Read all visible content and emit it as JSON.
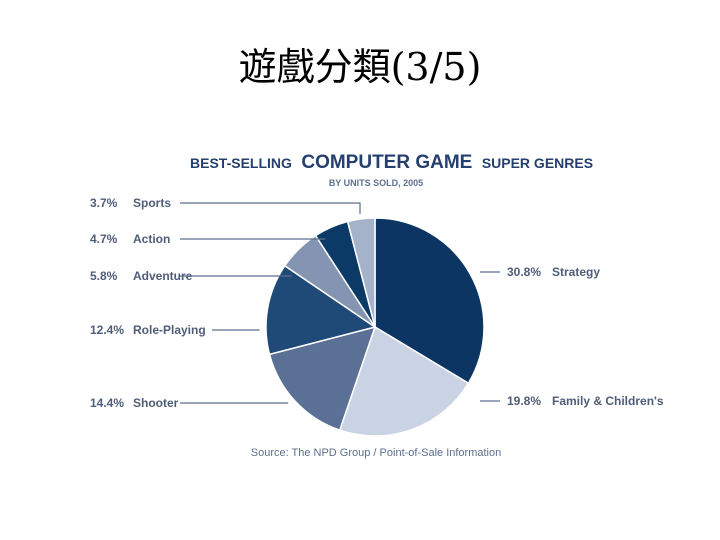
{
  "slide": {
    "title": "遊戲分類(3/5)"
  },
  "chart_data": {
    "type": "pie",
    "title_prefix": "BEST-SELLING",
    "title_main": "COMPUTER GAME",
    "title_suffix": "SUPER GENRES",
    "subtitle": "BY UNITS SOLD, 2005",
    "source": "Source: The NPD Group / Point-of-Sale Information",
    "slices": [
      {
        "name": "Strategy",
        "value": 30.8,
        "label": "30.8%",
        "color": "#0d3564",
        "side": "right"
      },
      {
        "name": "Family & Children's",
        "value": 19.8,
        "label": "19.8%",
        "color": "#c9d3e3",
        "side": "right"
      },
      {
        "name": "Shooter",
        "value": 14.4,
        "label": "14.4%",
        "color": "#5b7095",
        "side": "left"
      },
      {
        "name": "Role-Playing",
        "value": 12.4,
        "label": "12.4%",
        "color": "#1f4a78",
        "side": "left"
      },
      {
        "name": "Adventure",
        "value": 5.8,
        "label": "5.8%",
        "color": "#8495b3",
        "side": "left"
      },
      {
        "name": "Action",
        "value": 4.7,
        "label": "4.7%",
        "color": "#0c3a67",
        "side": "left"
      },
      {
        "name": "Sports",
        "value": 3.7,
        "label": "3.7%",
        "color": "#a4b2ca",
        "side": "left"
      }
    ]
  }
}
